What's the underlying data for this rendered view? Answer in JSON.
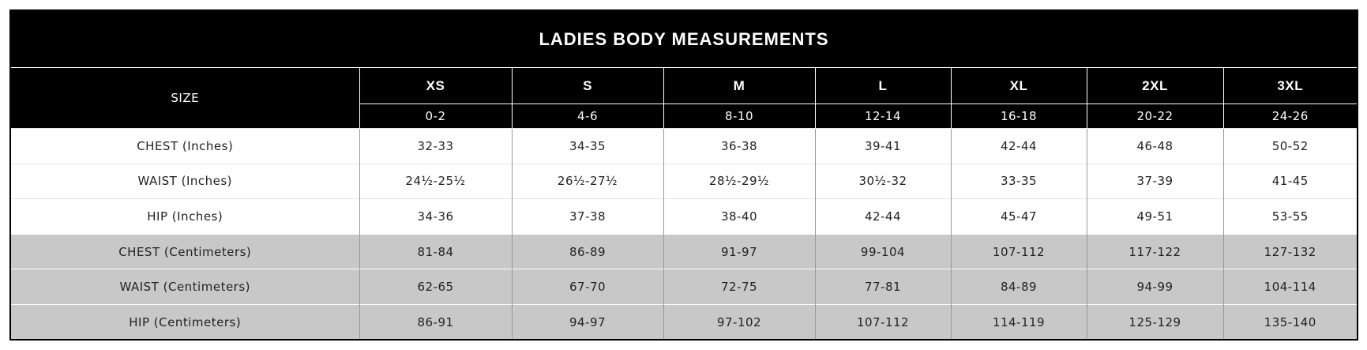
{
  "table": {
    "title": "LADIES BODY MEASUREMENTS",
    "size_label": "SIZE",
    "sizes": [
      "XS",
      "S",
      "M",
      "L",
      "XL",
      "2XL",
      "3XL"
    ],
    "size_ranges": [
      "0-2",
      "4-6",
      "8-10",
      "12-14",
      "16-18",
      "20-22",
      "24-26"
    ],
    "rows": [
      {
        "label": "CHEST (Inches)",
        "values": [
          "32-33",
          "34-35",
          "36-38",
          "39-41",
          "42-44",
          "46-48",
          "50-52"
        ]
      },
      {
        "label": "WAIST (Inches)",
        "values": [
          "24½-25½",
          "26½-27½",
          "28½-29½",
          "30½-32",
          "33-35",
          "37-39",
          "41-45"
        ]
      },
      {
        "label": "HIP (Inches)",
        "values": [
          "34-36",
          "37-38",
          "38-40",
          "42-44",
          "45-47",
          "49-51",
          "53-55"
        ]
      },
      {
        "label": "CHEST (Centimeters)",
        "values": [
          "81-84",
          "86-89",
          "91-97",
          "99-104",
          "107-112",
          "117-122",
          "127-132"
        ]
      },
      {
        "label": "WAIST (Centimeters)",
        "values": [
          "62-65",
          "67-70",
          "72-75",
          "77-81",
          "84-89",
          "94-99",
          "104-114"
        ]
      },
      {
        "label": "HIP (Centimeters)",
        "values": [
          "86-91",
          "94-97",
          "97-102",
          "107-112",
          "114-119",
          "125-129",
          "135-140"
        ]
      }
    ]
  }
}
